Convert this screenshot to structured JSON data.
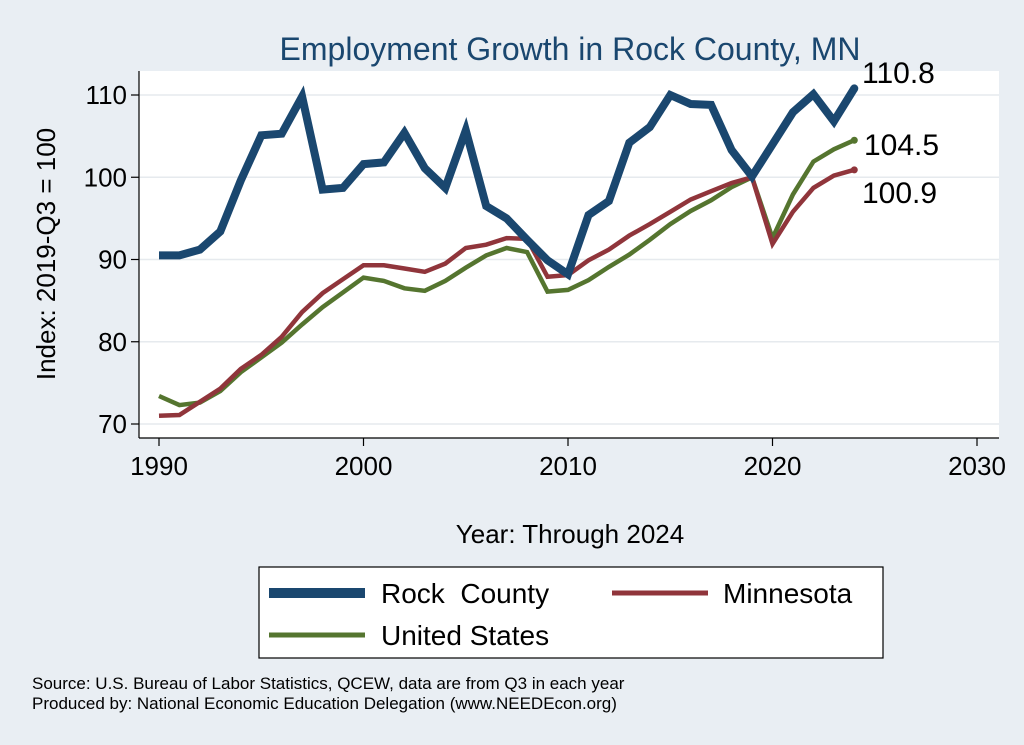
{
  "chart_data": {
    "type": "line",
    "title": "Employment Growth in Rock County, MN",
    "xlabel": "Year: Through 2024",
    "ylabel": "Index: 2019-Q3 = 100",
    "xlim": [
      1990,
      2030
    ],
    "ylim": [
      69,
      113
    ],
    "xticks": [
      1990,
      2000,
      2010,
      2020,
      2030
    ],
    "yticks": [
      70,
      80,
      90,
      100,
      110
    ],
    "grid": true,
    "legend_position": "bottom",
    "series": [
      {
        "name": "Rock  County",
        "color": "#1a476f",
        "end_label": "110.8",
        "x": [
          1990,
          1991,
          1992,
          1993,
          1994,
          1995,
          1996,
          1997,
          1998,
          1999,
          2000,
          2001,
          2002,
          2003,
          2004,
          2005,
          2006,
          2007,
          2008,
          2009,
          2010,
          2011,
          2012,
          2013,
          2014,
          2015,
          2016,
          2017,
          2018,
          2019,
          2020,
          2021,
          2022,
          2023,
          2024
        ],
        "values": [
          90.5,
          90.5,
          91.2,
          93.4,
          99.6,
          105.1,
          105.3,
          109.8,
          98.5,
          98.7,
          101.6,
          101.8,
          105.4,
          101.1,
          98.7,
          105.7,
          96.5,
          95,
          92.4,
          89.9,
          88.2,
          95.4,
          97.1,
          104.2,
          106.1,
          110,
          108.9,
          108.8,
          103.3,
          100.1,
          104,
          107.9,
          110.1,
          106.8,
          110.8
        ]
      },
      {
        "name": "Minnesota",
        "color": "#90353b",
        "end_label": "100.9",
        "x": [
          1990,
          1991,
          1992,
          1993,
          1994,
          1995,
          1996,
          1997,
          1998,
          1999,
          2000,
          2001,
          2002,
          2003,
          2004,
          2005,
          2006,
          2007,
          2008,
          2009,
          2010,
          2011,
          2012,
          2013,
          2014,
          2015,
          2016,
          2017,
          2018,
          2019,
          2020,
          2021,
          2022,
          2023,
          2024
        ],
        "values": [
          71,
          71.1,
          72.7,
          74.3,
          76.7,
          78.4,
          80.6,
          83.6,
          85.9,
          87.6,
          89.3,
          89.3,
          88.9,
          88.5,
          89.5,
          91.4,
          91.8,
          92.6,
          92.5,
          87.9,
          88.1,
          89.9,
          91.2,
          92.9,
          94.3,
          95.8,
          97.3,
          98.3,
          99.3,
          100,
          91.9,
          95.8,
          98.7,
          100.2,
          100.9
        ]
      },
      {
        "name": "United States",
        "color": "#55752f",
        "end_label": "104.5",
        "x": [
          1990,
          1991,
          1992,
          1993,
          1994,
          1995,
          1996,
          1997,
          1998,
          1999,
          2000,
          2001,
          2002,
          2003,
          2004,
          2005,
          2006,
          2007,
          2008,
          2009,
          2010,
          2011,
          2012,
          2013,
          2014,
          2015,
          2016,
          2017,
          2018,
          2019,
          2020,
          2021,
          2022,
          2023,
          2024
        ],
        "values": [
          73.4,
          72.3,
          72.6,
          74,
          76.3,
          78.1,
          79.9,
          82.1,
          84.2,
          86,
          87.8,
          87.4,
          86.5,
          86.2,
          87.4,
          89,
          90.5,
          91.4,
          90.9,
          86.1,
          86.3,
          87.5,
          89.1,
          90.6,
          92.4,
          94.3,
          95.9,
          97.2,
          98.8,
          100,
          92.6,
          97.9,
          101.9,
          103.4,
          104.5
        ]
      }
    ]
  },
  "footer": {
    "source": "Source: U.S. Bureau of Labor Statistics, QCEW, data are from Q3 in each year",
    "producer": "Produced by: National Economic Education Delegation (www.NEEDEcon.org)"
  }
}
